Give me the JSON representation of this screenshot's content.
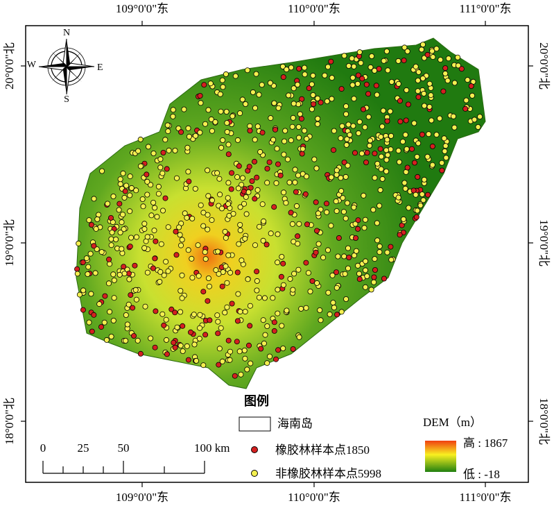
{
  "map": {
    "longitude_labels": [
      "109°0'0\"东",
      "110°0'0\"东",
      "111°0'0\"东"
    ],
    "latitude_labels": [
      "20°0'0\"北",
      "19°0'0\"北",
      "18°0'0\"北"
    ],
    "compass": {
      "n": "N",
      "s": "S",
      "e": "E",
      "w": "W"
    },
    "legend": {
      "title": "图例",
      "items": [
        "海南岛",
        "橡胶林样本点1850",
        "非橡胶林样本点5998"
      ]
    },
    "scale_bar": [
      "0",
      "25",
      "50",
      "100 km"
    ],
    "dem": {
      "title": "DEM（m）",
      "high": "高 : 1867",
      "low": "低 : -18"
    }
  }
}
